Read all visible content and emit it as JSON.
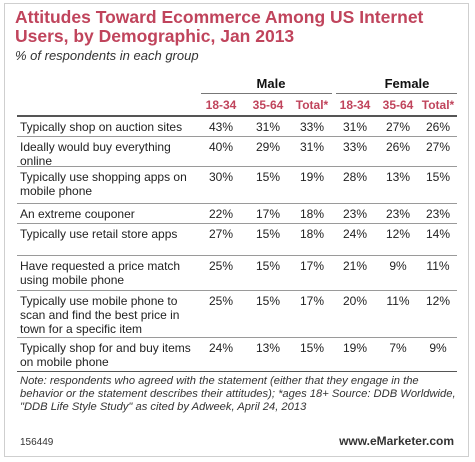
{
  "title": "Attitudes Toward Ecommerce Among US Internet Users, by Demographic, Jan 2013",
  "subtitle": "% of respondents in each group",
  "colors": {
    "title": "#c0445c",
    "subheader": "#c0445c"
  },
  "chart_data": {
    "type": "table",
    "groups": [
      "Male",
      "Female"
    ],
    "columns": [
      "18-34",
      "35-64",
      "Total*",
      "18-34",
      "35-64",
      "Total*"
    ],
    "rows": [
      {
        "label": "Typically shop on auction sites",
        "values": [
          "43%",
          "31%",
          "33%",
          "31%",
          "27%",
          "26%"
        ]
      },
      {
        "label": "Ideally would buy everything online",
        "values": [
          "40%",
          "29%",
          "31%",
          "33%",
          "26%",
          "27%"
        ]
      },
      {
        "label": "Typically use shopping apps on mobile phone",
        "values": [
          "30%",
          "15%",
          "19%",
          "28%",
          "13%",
          "15%"
        ]
      },
      {
        "label": "An extreme couponer",
        "values": [
          "22%",
          "17%",
          "18%",
          "23%",
          "23%",
          "23%"
        ]
      },
      {
        "label": "Typically use retail store apps",
        "values": [
          "27%",
          "15%",
          "18%",
          "24%",
          "12%",
          "14%"
        ]
      },
      {
        "label": "Have requested a price match using mobile phone",
        "values": [
          "25%",
          "15%",
          "17%",
          "21%",
          "9%",
          "11%"
        ]
      },
      {
        "label": "Typically use mobile phone to scan and find the best price in town for a specific item",
        "values": [
          "25%",
          "15%",
          "17%",
          "20%",
          "11%",
          "12%"
        ]
      },
      {
        "label": "Typically shop for and buy items on mobile phone",
        "values": [
          "24%",
          "13%",
          "15%",
          "19%",
          "7%",
          "9%"
        ]
      }
    ]
  },
  "note": "Note: respondents who agreed with the statement (either that they engage in the behavior or the statement describes their attitudes); *ages 18+ Source: DDB Worldwide, \"DDB Life Style Study\" as cited by Adweek, April 24, 2013",
  "footer": {
    "id": "156449",
    "brand": "www.eMarketer.com"
  }
}
